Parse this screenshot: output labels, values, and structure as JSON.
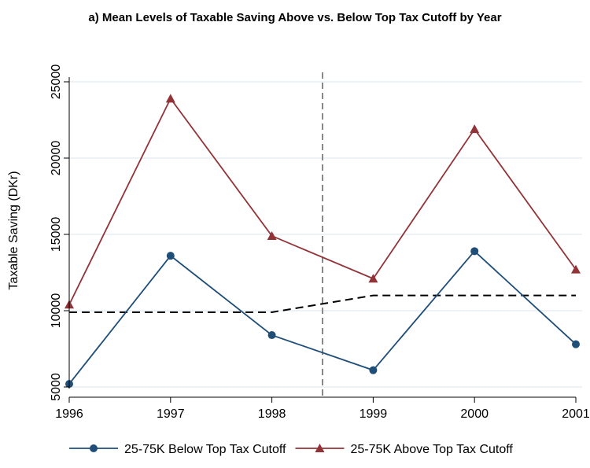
{
  "chart_data": {
    "type": "line",
    "title": "a) Mean Levels of Taxable Saving Above vs. Below Top Tax Cutoff by Year",
    "xlabel": "",
    "ylabel": "Taxable Saving (DKr)",
    "x": [
      1996,
      1997,
      1998,
      1999,
      2000,
      2001
    ],
    "xlim": [
      1996,
      2001
    ],
    "ylim": [
      5000,
      25000
    ],
    "yticks": [
      5000,
      10000,
      15000,
      20000,
      25000
    ],
    "grid": true,
    "legend_position": "bottom",
    "series": [
      {
        "name": "25-75K Below Top Tax Cutoff",
        "values": [
          5200,
          13600,
          8400,
          6100,
          13900,
          7800
        ],
        "color": "#1f4e79",
        "marker": "circle"
      },
      {
        "name": "25-75K Above Top Tax Cutoff",
        "values": [
          10400,
          23900,
          14900,
          12100,
          21900,
          12700
        ],
        "color": "#923338",
        "marker": "triangle"
      }
    ],
    "reference_line": {
      "x": [
        1996,
        1997,
        1998,
        1999,
        2000,
        2001
      ],
      "values": [
        9900,
        9900,
        9900,
        11000,
        11000,
        11000
      ],
      "style": "dashed",
      "color": "#000000"
    },
    "vertical_line": {
      "x": 1998.5,
      "style": "dashed",
      "color": "#888888"
    }
  }
}
